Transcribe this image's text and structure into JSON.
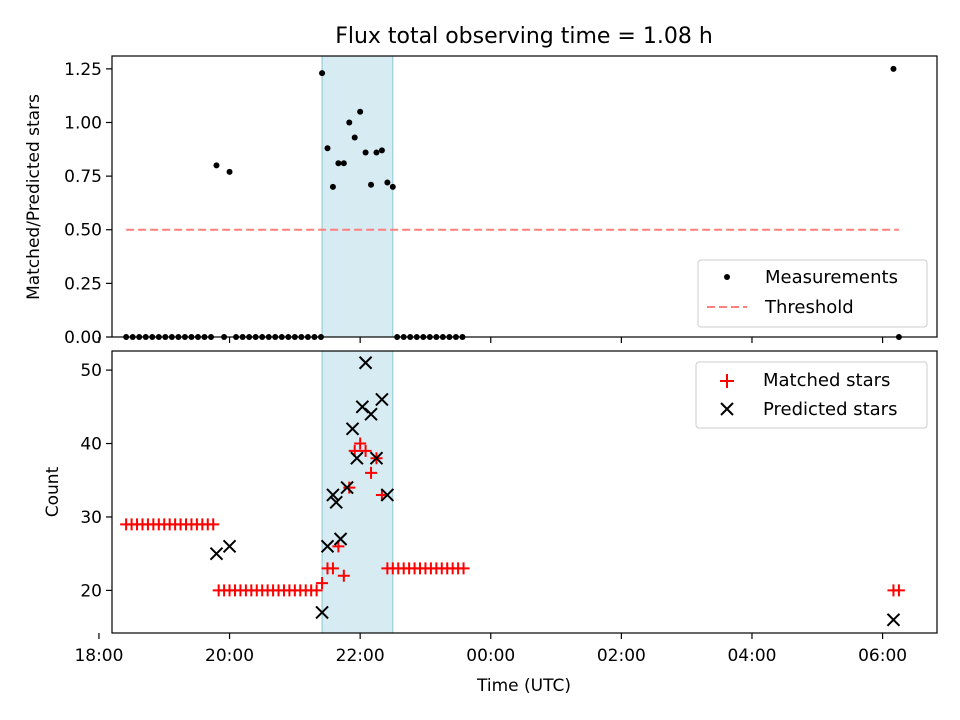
{
  "chart_data": [
    {
      "type": "scatter",
      "title": "Flux total observing time = 1.08 h",
      "ylabel": "Matched/Predicted stars",
      "xlabel": "",
      "xlim": [
        "18:12",
        "06:50"
      ],
      "ylim": [
        0,
        1.31
      ],
      "yticks": [
        "0.00",
        "0.25",
        "0.50",
        "0.75",
        "1.00",
        "1.25"
      ],
      "shaded_interval": [
        "21:25",
        "22:30"
      ],
      "legend": {
        "placement": "lower-right",
        "entries": [
          "Measurements",
          "Threshold"
        ]
      },
      "series": [
        {
          "name": "Measurements",
          "marker": "dot",
          "color": "#000000",
          "points": [
            [
              "18:25",
              0
            ],
            [
              "18:31",
              0
            ],
            [
              "18:37",
              0
            ],
            [
              "18:43",
              0
            ],
            [
              "18:49",
              0
            ],
            [
              "18:55",
              0
            ],
            [
              "19:01",
              0
            ],
            [
              "19:07",
              0
            ],
            [
              "19:13",
              0
            ],
            [
              "19:19",
              0
            ],
            [
              "19:25",
              0
            ],
            [
              "19:31",
              0
            ],
            [
              "19:37",
              0
            ],
            [
              "19:43",
              0
            ],
            [
              "19:48",
              0.8
            ],
            [
              "19:55",
              0
            ],
            [
              "20:00",
              0.77
            ],
            [
              "20:06",
              0
            ],
            [
              "20:12",
              0
            ],
            [
              "20:18",
              0
            ],
            [
              "20:24",
              0
            ],
            [
              "20:30",
              0
            ],
            [
              "20:36",
              0
            ],
            [
              "20:42",
              0
            ],
            [
              "20:48",
              0
            ],
            [
              "20:54",
              0
            ],
            [
              "21:00",
              0
            ],
            [
              "21:06",
              0
            ],
            [
              "21:12",
              0
            ],
            [
              "21:18",
              0
            ],
            [
              "21:24",
              0
            ],
            [
              "21:25",
              1.23
            ],
            [
              "21:30",
              0.88
            ],
            [
              "21:35",
              0.7
            ],
            [
              "21:40",
              0.81
            ],
            [
              "21:45",
              0.81
            ],
            [
              "21:50",
              1.0
            ],
            [
              "21:55",
              0.93
            ],
            [
              "22:00",
              1.05
            ],
            [
              "22:05",
              0.86
            ],
            [
              "22:10",
              0.71
            ],
            [
              "22:15",
              0.86
            ],
            [
              "22:20",
              0.87
            ],
            [
              "22:25",
              0.72
            ],
            [
              "22:30",
              0.7
            ],
            [
              "22:34",
              0
            ],
            [
              "22:40",
              0
            ],
            [
              "22:46",
              0
            ],
            [
              "22:52",
              0
            ],
            [
              "22:58",
              0
            ],
            [
              "23:04",
              0
            ],
            [
              "23:10",
              0
            ],
            [
              "23:16",
              0
            ],
            [
              "23:22",
              0
            ],
            [
              "23:28",
              0
            ],
            [
              "23:34",
              0
            ],
            [
              "06:10",
              1.25
            ],
            [
              "06:15",
              0
            ]
          ]
        },
        {
          "name": "Threshold",
          "style": "dashed",
          "color": "#ff7f7f",
          "points": [
            [
              "18:25",
              0.5
            ],
            [
              "06:15",
              0.5
            ]
          ]
        }
      ]
    },
    {
      "type": "scatter",
      "ylabel": "Count",
      "xlabel": "Time (UTC)",
      "xlim": [
        "18:12",
        "06:50"
      ],
      "ylim": [
        14.2,
        52.6
      ],
      "yticks": [
        "20",
        "30",
        "40",
        "50"
      ],
      "xticks": [
        "18:00",
        "20:00",
        "22:00",
        "00:00",
        "02:00",
        "04:00",
        "06:00"
      ],
      "shaded_interval": [
        "21:25",
        "22:30"
      ],
      "legend": {
        "placement": "upper-right",
        "entries": [
          "Matched stars",
          "Predicted stars"
        ]
      },
      "series": [
        {
          "name": "Matched stars",
          "marker": "plus",
          "color": "#ff0000",
          "points": [
            [
              "18:25",
              29
            ],
            [
              "18:30",
              29
            ],
            [
              "18:35",
              29
            ],
            [
              "18:40",
              29
            ],
            [
              "18:45",
              29
            ],
            [
              "18:50",
              29
            ],
            [
              "18:55",
              29
            ],
            [
              "19:00",
              29
            ],
            [
              "19:05",
              29
            ],
            [
              "19:10",
              29
            ],
            [
              "19:15",
              29
            ],
            [
              "19:20",
              29
            ],
            [
              "19:25",
              29
            ],
            [
              "19:30",
              29
            ],
            [
              "19:35",
              29
            ],
            [
              "19:40",
              29
            ],
            [
              "19:45",
              29
            ],
            [
              "19:50",
              20
            ],
            [
              "19:55",
              20
            ],
            [
              "20:00",
              20
            ],
            [
              "20:05",
              20
            ],
            [
              "20:10",
              20
            ],
            [
              "20:15",
              20
            ],
            [
              "20:20",
              20
            ],
            [
              "20:25",
              20
            ],
            [
              "20:30",
              20
            ],
            [
              "20:35",
              20
            ],
            [
              "20:40",
              20
            ],
            [
              "20:45",
              20
            ],
            [
              "20:50",
              20
            ],
            [
              "20:55",
              20
            ],
            [
              "21:00",
              20
            ],
            [
              "21:05",
              20
            ],
            [
              "21:10",
              20
            ],
            [
              "21:15",
              20
            ],
            [
              "21:20",
              20
            ],
            [
              "21:25",
              21
            ],
            [
              "21:30",
              23
            ],
            [
              "21:35",
              23
            ],
            [
              "21:40",
              26
            ],
            [
              "21:45",
              22
            ],
            [
              "21:50",
              34
            ],
            [
              "21:55",
              39
            ],
            [
              "22:00",
              40
            ],
            [
              "22:05",
              39
            ],
            [
              "22:10",
              36
            ],
            [
              "22:15",
              38
            ],
            [
              "22:20",
              33
            ],
            [
              "22:25",
              23
            ],
            [
              "22:30",
              23
            ],
            [
              "22:35",
              23
            ],
            [
              "22:40",
              23
            ],
            [
              "22:45",
              23
            ],
            [
              "22:50",
              23
            ],
            [
              "22:55",
              23
            ],
            [
              "23:00",
              23
            ],
            [
              "23:05",
              23
            ],
            [
              "23:10",
              23
            ],
            [
              "23:15",
              23
            ],
            [
              "23:20",
              23
            ],
            [
              "23:25",
              23
            ],
            [
              "23:30",
              23
            ],
            [
              "23:35",
              23
            ],
            [
              "06:10",
              20
            ],
            [
              "06:15",
              20
            ]
          ]
        },
        {
          "name": "Predicted stars",
          "marker": "x",
          "color": "#000000",
          "points": [
            [
              "19:48",
              25
            ],
            [
              "20:00",
              26
            ],
            [
              "21:25",
              17
            ],
            [
              "21:30",
              26
            ],
            [
              "21:35",
              33
            ],
            [
              "21:38",
              32
            ],
            [
              "21:42",
              27
            ],
            [
              "21:48",
              34
            ],
            [
              "21:53",
              42
            ],
            [
              "21:57",
              38
            ],
            [
              "22:02",
              45
            ],
            [
              "22:05",
              51
            ],
            [
              "22:10",
              44
            ],
            [
              "22:15",
              38
            ],
            [
              "22:20",
              46
            ],
            [
              "22:25",
              33
            ],
            [
              "06:10",
              16
            ]
          ]
        }
      ]
    }
  ]
}
